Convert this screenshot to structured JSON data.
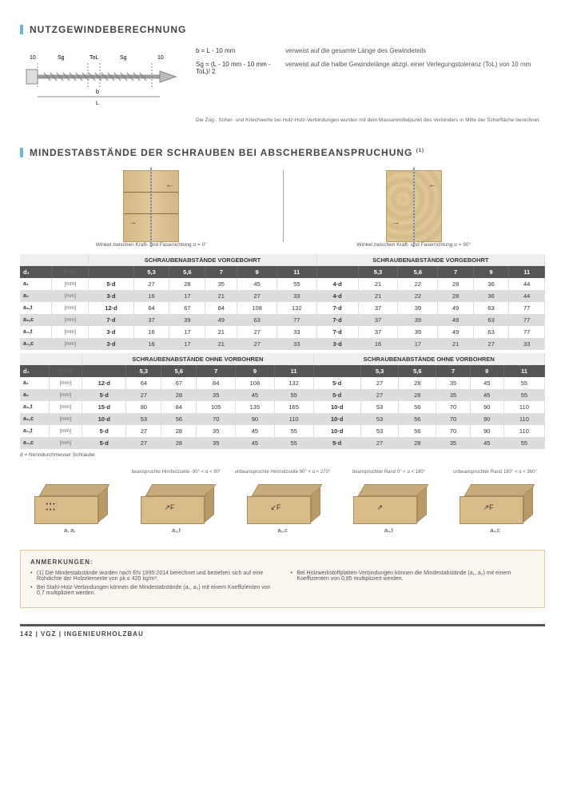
{
  "section1": {
    "title": "NUTZGEWINDEBERECHNUNG",
    "formula1_sym": "b   = L - 10 mm",
    "formula1_desc": "verweist auf die gesamte Länge des Gewindeteils",
    "formula2_sym": "Sg  = (L - 10 mm - 10 mm - ToL)/ 2",
    "formula2_desc": "verweist auf die halbe Gewindelänge abzgl. einer Verlegungstoleranz (ToL) von 10 mm",
    "footnote": "Die Zug-, Scher- und Kriechwerte bei Holz-Holz-Verbindungen wurden mit dem Massenmittelpunkt des Verbinders in Mitte der Scherfläche berechnet.",
    "diag_labels": {
      "l10_left": "10",
      "sg_left": "Sg",
      "tol": "ToL",
      "sg_right": "Sg",
      "l10_right": "10",
      "b": "b",
      "L": "L"
    }
  },
  "section2": {
    "title": "MINDESTABSTÄNDE DER SCHRAUBEN BEI ABSCHERBEANSPRUCHUNG",
    "title_sup": "(1)",
    "caption_left": "Winkel zwischen Kraft- und Faserrichtung α = 0°",
    "caption_right": "Winkel zwischen Kraft- und Faserrichtung α = 90°",
    "hdr_vorgebohrt": "SCHRAUBENABSTÄNDE VORGEBOHRT",
    "hdr_ohne": "SCHRAUBENABSTÄNDE OHNE VORBOHREN",
    "col_d1": "d₁",
    "unit_mm": "[mm]",
    "dia_cols": [
      "5,3",
      "5,6",
      "7",
      "9",
      "11"
    ],
    "rows_v": [
      {
        "k": "a₁",
        "f": "5·d",
        "vL": [
          "27",
          "28",
          "35",
          "45",
          "55"
        ],
        "fR": "4·d",
        "vR": [
          "21",
          "22",
          "28",
          "36",
          "44"
        ],
        "cls": "row-white"
      },
      {
        "k": "a₂",
        "f": "3·d",
        "vL": [
          "16",
          "17",
          "21",
          "27",
          "33"
        ],
        "fR": "4·d",
        "vR": [
          "21",
          "22",
          "28",
          "36",
          "44"
        ],
        "cls": "row-gray"
      },
      {
        "k": "a₃,t",
        "f": "12·d",
        "vL": [
          "64",
          "67",
          "84",
          "108",
          "132"
        ],
        "fR": "7·d",
        "vR": [
          "37",
          "39",
          "49",
          "63",
          "77"
        ],
        "cls": "row-white"
      },
      {
        "k": "a₃,c",
        "f": "7·d",
        "vL": [
          "37",
          "39",
          "49",
          "63",
          "77"
        ],
        "fR": "7·d",
        "vR": [
          "37",
          "39",
          "49",
          "63",
          "77"
        ],
        "cls": "row-gray"
      },
      {
        "k": "a₄,t",
        "f": "3·d",
        "vL": [
          "16",
          "17",
          "21",
          "27",
          "33"
        ],
        "fR": "7·d",
        "vR": [
          "37",
          "39",
          "49",
          "63",
          "77"
        ],
        "cls": "row-white"
      },
      {
        "k": "a₄,c",
        "f": "3·d",
        "vL": [
          "16",
          "17",
          "21",
          "27",
          "33"
        ],
        "fR": "3·d",
        "vR": [
          "16",
          "17",
          "21",
          "27",
          "33"
        ],
        "cls": "row-gray"
      }
    ],
    "rows_o": [
      {
        "k": "a₁",
        "f": "12·d",
        "vL": [
          "64",
          "67",
          "84",
          "108",
          "132"
        ],
        "fR": "5·d",
        "vR": [
          "27",
          "28",
          "35",
          "45",
          "55"
        ],
        "cls": "row-white"
      },
      {
        "k": "a₂",
        "f": "5·d",
        "vL": [
          "27",
          "28",
          "35",
          "45",
          "55"
        ],
        "fR": "5·d",
        "vR": [
          "27",
          "28",
          "35",
          "45",
          "55"
        ],
        "cls": "row-gray"
      },
      {
        "k": "a₃,t",
        "f": "15·d",
        "vL": [
          "80",
          "84",
          "105",
          "135",
          "165"
        ],
        "fR": "10·d",
        "vR": [
          "53",
          "56",
          "70",
          "90",
          "110"
        ],
        "cls": "row-white"
      },
      {
        "k": "a₃,c",
        "f": "10·d",
        "vL": [
          "53",
          "56",
          "70",
          "90",
          "110"
        ],
        "fR": "10·d",
        "vR": [
          "53",
          "56",
          "70",
          "90",
          "110"
        ],
        "cls": "row-gray"
      },
      {
        "k": "a₄,t",
        "f": "5·d",
        "vL": [
          "27",
          "28",
          "35",
          "45",
          "55"
        ],
        "fR": "10·d",
        "vR": [
          "53",
          "56",
          "70",
          "90",
          "110"
        ],
        "cls": "row-white"
      },
      {
        "k": "a₄,c",
        "f": "5·d",
        "vL": [
          "27",
          "28",
          "35",
          "45",
          "55"
        ],
        "fR": "5·d",
        "vR": [
          "27",
          "28",
          "35",
          "45",
          "55"
        ],
        "cls": "row-gray"
      }
    ],
    "table_note": "d = Nenndurchmesser Schraube",
    "bd_labels": [
      "",
      "beanspruchte Hirnholzseite -90° < α < 90°",
      "unbeanspruchte Hirnholzseite 90° < α < 270°",
      "beanspruchter Rand 0° < α < 180°",
      "unbeanspruchter Rand 180° < α < 360°"
    ],
    "bd_sub": [
      "a₁  a₂",
      "a₃,t",
      "a₃,c",
      "a₄,t",
      "a₄,c"
    ]
  },
  "anm": {
    "title": "ANMERKUNGEN:",
    "items_left": [
      "(1) Die Mindestabstände wurden nach EN 1995:2014 berechnet und beziehen sich auf eine Rohdichte der Holzelemente von ρk ≤ 420 kg/m³.",
      "Bei Stahl-Holz-Verbindungen können die Mindestabstände (a₁, a₂) mit einem Koeffizienten von 0,7 multipliziert werden."
    ],
    "items_right": [
      "Bei Holzwerkstoffplatten-Verbindungen können die Mindestabstände (a₁, a₂) mit einem Koeffizienten von 0,85 multipliziert werden."
    ]
  },
  "footer": "142  |  VGZ  |  INGENIEURHOLZBAU",
  "colors": {
    "accent": "#6db5d1",
    "wood": "#d9bc8a",
    "wood_dark": "#b89968",
    "hdr_dark": "#555555",
    "row_gray": "#dddddd"
  }
}
